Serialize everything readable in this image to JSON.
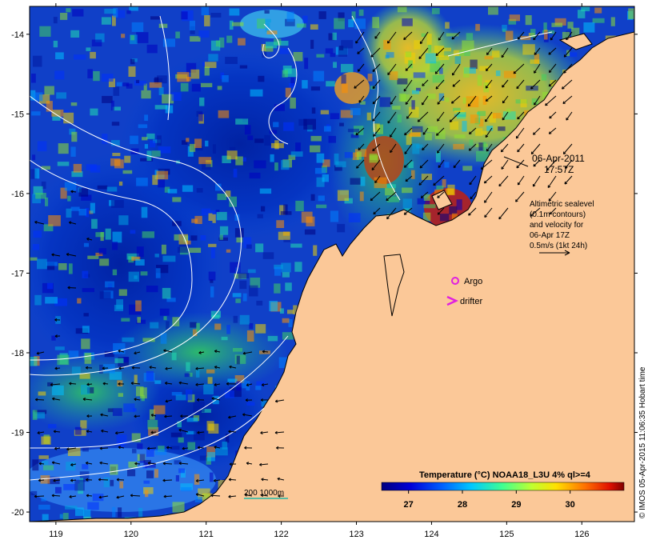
{
  "map": {
    "date_label": "06-Apr-2011",
    "time_label": "17:57Z",
    "altimetry_note": [
      "Altimetric sealevel",
      "(0.1m contours)",
      "and velocity for",
      "06-Apr 17Z",
      "0.5m/s (1kt 24h)"
    ],
    "argo_label": "Argo",
    "drifter_label": "drifter",
    "depth_label": "200  1000m",
    "colorbar": {
      "title": "Temperature (°C) NOAA18_L3U 4% ql>=4",
      "ticks": [
        "27",
        "28",
        "29",
        "30"
      ],
      "range": [
        26.5,
        31.0
      ]
    },
    "x_axis": {
      "ticks": [
        "119",
        "120",
        "121",
        "122",
        "123",
        "124",
        "125",
        "126"
      ]
    },
    "y_axis": {
      "ticks": [
        "-14",
        "-15",
        "-16",
        "-17",
        "-18",
        "-19",
        "-20"
      ]
    },
    "credit": "© IMOS 05-Apr-2015 11:06:35 Hobart time",
    "colors": {
      "land": "#fbc898",
      "argo": "#e020e0",
      "drifter": "#e020e0",
      "isobath": "#22b8a8",
      "contour": "#ffffff",
      "velocity": "#000000"
    }
  }
}
